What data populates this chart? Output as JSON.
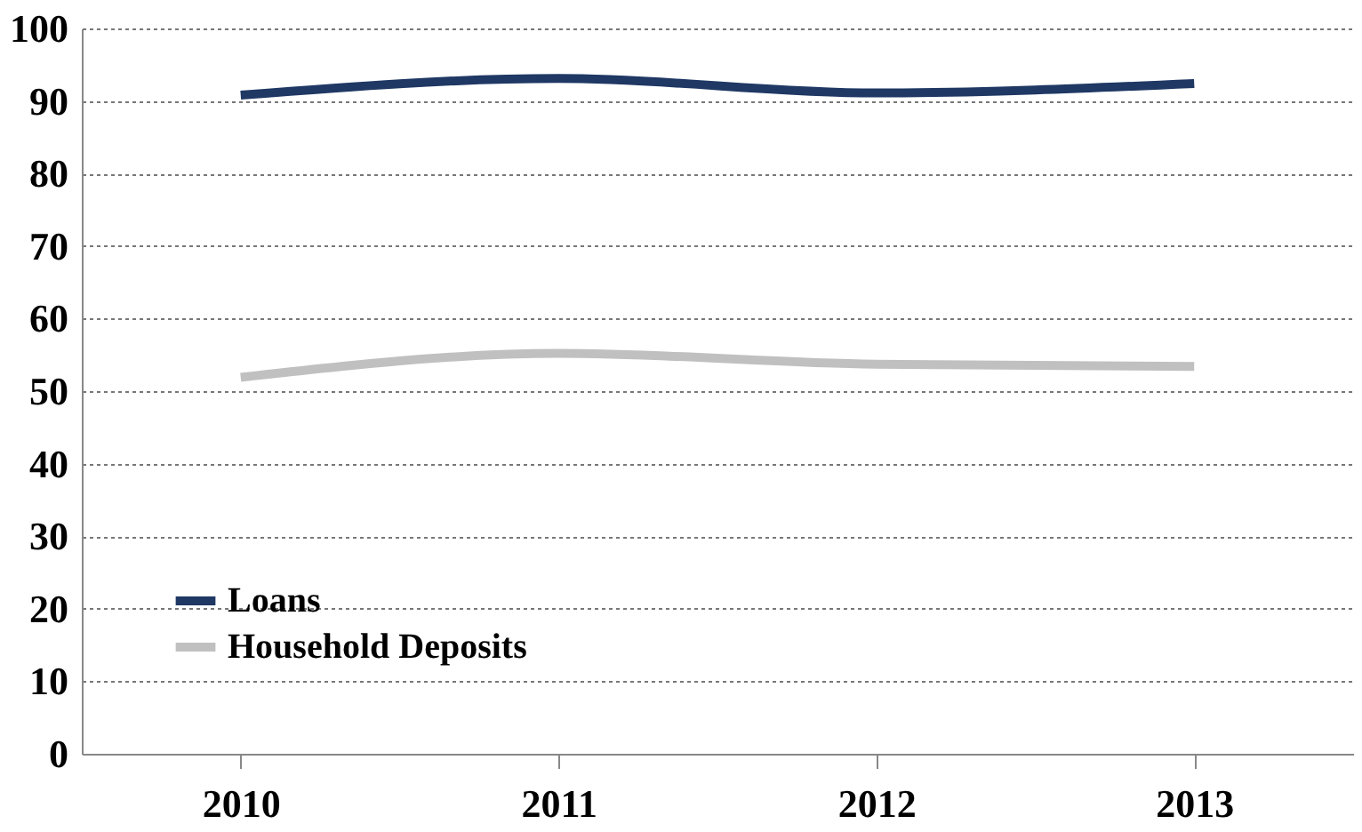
{
  "chart_data": {
    "type": "line",
    "categories": [
      "2010",
      "2011",
      "2012",
      "2013"
    ],
    "series": [
      {
        "name": "Loans",
        "color": "#1f3864",
        "values": [
          90.8,
          93.1,
          91.1,
          92.4
        ]
      },
      {
        "name": "Household Deposits",
        "color": "#c0c0c0",
        "values": [
          51.9,
          55.2,
          53.7,
          53.4
        ]
      }
    ],
    "ylim": [
      0,
      100
    ],
    "yticks": [
      0,
      10,
      20,
      30,
      40,
      50,
      60,
      70,
      80,
      90,
      100
    ],
    "grid": "y",
    "legend": "bottom left",
    "marker": "none",
    "line_style": "solid"
  }
}
